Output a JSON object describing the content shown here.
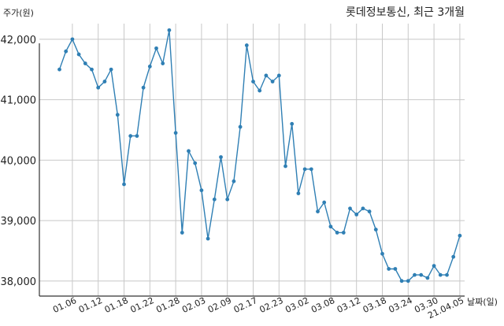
{
  "chart_data": {
    "type": "line",
    "title": "롯데정보통신, 최근 3개월",
    "ylabel": "주가(원)",
    "xlabel": "날짜(일)",
    "ylim": [
      37750,
      42350
    ],
    "yticks": [
      38000,
      39000,
      40000,
      41000,
      42000
    ],
    "ytick_labels": [
      "38,000",
      "39,000",
      "40,000",
      "41,000",
      "42,000"
    ],
    "xticks": [
      "01.06",
      "01.12",
      "01.18",
      "01.22",
      "01.28",
      "02.03",
      "02.09",
      "02.17",
      "02.23",
      "03.02",
      "03.08",
      "03.12",
      "03.18",
      "03.24",
      "03.30",
      "21.04.05"
    ],
    "xtick_index": [
      2,
      6,
      10,
      14,
      18,
      22,
      26,
      30,
      34,
      38,
      42,
      46,
      50,
      54,
      58,
      62
    ],
    "grid": true,
    "series": [
      {
        "color": "#2f7fb4",
        "values": [
          41500,
          41800,
          42000,
          41750,
          41600,
          41500,
          41200,
          41300,
          41500,
          40750,
          39600,
          40400,
          40400,
          41200,
          41550,
          41850,
          41600,
          42150,
          40450,
          38800,
          40150,
          39950,
          39500,
          38700,
          39350,
          40050,
          39350,
          39650,
          40550,
          41900,
          41300,
          41150,
          41400,
          41300,
          41400,
          39900,
          40600,
          39450,
          39850,
          39850,
          39150,
          39300,
          38900,
          38800,
          38800,
          39200,
          39100,
          39200,
          39150,
          38850,
          38450,
          38200,
          38200,
          38000,
          38000,
          38100,
          38100,
          38050,
          38250,
          38100,
          38100,
          38400,
          38750
        ]
      }
    ]
  }
}
